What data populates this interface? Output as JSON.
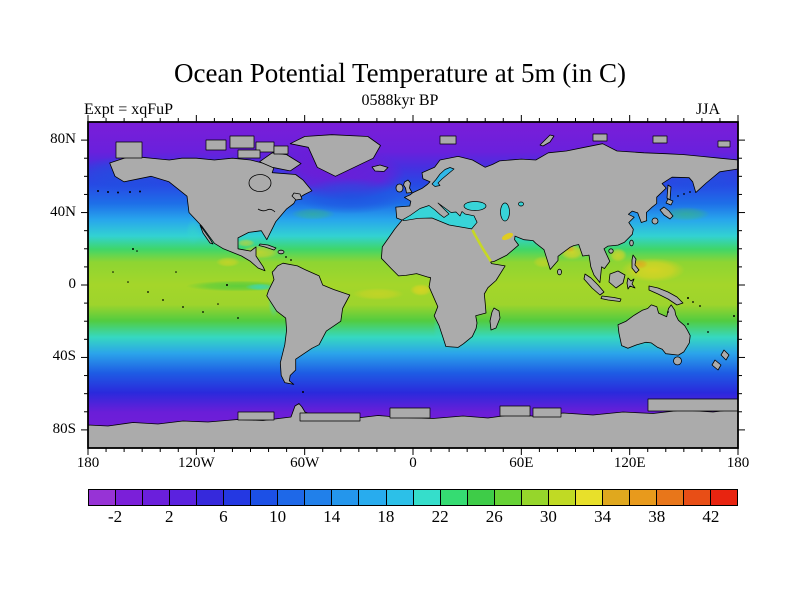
{
  "figure": {
    "title": "Ocean Potential Temperature at 5m (in C)",
    "subtitle": "0588kyr BP",
    "experiment_label": "Expt = xqFuP",
    "season_label": "JJA"
  },
  "axes": {
    "x_tick_labels": [
      "180",
      "120W",
      "60W",
      "0",
      "60E",
      "120E",
      "180"
    ],
    "y_tick_labels": [
      "80N",
      "40N",
      "0",
      "40S",
      "80S"
    ]
  },
  "colorbar": {
    "tick_labels": [
      "-2",
      "2",
      "6",
      "10",
      "14",
      "18",
      "22",
      "26",
      "30",
      "34",
      "38",
      "42"
    ],
    "cell_colors": [
      "#9733D6",
      "#7B1FD9",
      "#6B1FDC",
      "#5B22DF",
      "#3629DC",
      "#2438E2",
      "#1C50E6",
      "#1E68E8",
      "#2180EA",
      "#2496EC",
      "#28ACEE",
      "#2CC0E8",
      "#35DECB",
      "#35DC72",
      "#3ECC48",
      "#66D235",
      "#96D62B",
      "#C0DA24",
      "#E8E02A",
      "#E0A81E",
      "#E89A1C",
      "#E8761A",
      "#E84E16",
      "#E82410"
    ],
    "units": "C"
  },
  "chart_data": {
    "type": "heatmap",
    "title": "Ocean Potential Temperature at 5m (in C)",
    "time_label": "0588kyr BP",
    "experiment": "xqFuP",
    "season": "JJA",
    "depth_label": "5m",
    "units": "C",
    "projection": "equirectangular",
    "lon_range": [
      -180,
      180
    ],
    "lat_range": [
      -90,
      90
    ],
    "contour_levels_c": [
      -4,
      -2,
      0,
      2,
      4,
      6,
      8,
      10,
      12,
      14,
      16,
      18,
      20,
      22,
      24,
      26,
      28,
      30,
      32,
      34,
      36,
      38,
      40,
      42,
      44
    ],
    "palette": [
      "#9733D6",
      "#7B1FD9",
      "#6B1FDC",
      "#5B22DF",
      "#3629DC",
      "#2438E2",
      "#1C50E6",
      "#1E68E8",
      "#2180EA",
      "#2496EC",
      "#28ACEE",
      "#2CC0E8",
      "#35DECB",
      "#35DC72",
      "#3ECC48",
      "#66D235",
      "#96D62B",
      "#C0DA24",
      "#E8E02A",
      "#E0A81E",
      "#E89A1C",
      "#E8761A",
      "#E84E16",
      "#E82410"
    ],
    "land_color": "#ABABAB",
    "zonal_mean_estimate": {
      "lat": [
        85,
        75,
        65,
        55,
        45,
        35,
        25,
        15,
        5,
        -5,
        -15,
        -25,
        -35,
        -45,
        -55,
        -65,
        -75
      ],
      "temp_c": [
        -2,
        -1,
        3,
        7,
        13,
        19,
        24,
        27,
        27,
        27,
        25,
        20,
        14,
        8,
        2,
        -1,
        -2
      ]
    },
    "notable_features": [
      "purple (<0C) Arctic and Southern Ocean bands",
      "deep purple cold pool in subpolar North Atlantic",
      "yellow (30-32C) warm pools: Caribbean, Gulf of Guinea, Bay of Bengal, South China Sea, West Pacific",
      "green-cyan equatorial Pacific cold tongue off South America",
      "cyan Mediterranean, Black and Caspian Seas",
      "gray land mask including Antarctica and blocky polar sea-ice cells"
    ],
    "legend_position": "bottom",
    "grid": false
  }
}
